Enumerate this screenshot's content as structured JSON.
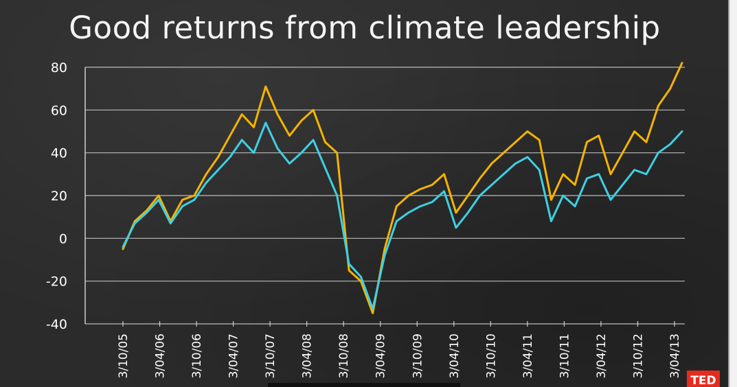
{
  "title": "Good returns from climate leadership",
  "logo_text": "TED",
  "chart_data": {
    "type": "line",
    "title": "Good returns from climate leadership",
    "xlabel": "",
    "ylabel": "",
    "ylim": [
      -40,
      80
    ],
    "grid": "horizontal",
    "yticks": [
      80,
      60,
      40,
      20,
      0,
      -20,
      -40
    ],
    "xticks": [
      "3/10/05",
      "3/04/06",
      "3/10/06",
      "3/04/07",
      "3/10/07",
      "3/04/08",
      "3/10/08",
      "3/04/09",
      "3/10/09",
      "3/04/10",
      "3/10/10",
      "3/04/11",
      "3/10/11",
      "3/04/12",
      "3/10/12",
      "3/04/13"
    ],
    "x": [
      "3/10/05",
      "3/12/05",
      "3/02/06",
      "3/04/06",
      "3/06/06",
      "3/08/06",
      "3/10/06",
      "3/12/06",
      "3/02/07",
      "3/04/07",
      "3/06/07",
      "3/08/07",
      "3/10/07",
      "3/12/07",
      "3/02/08",
      "3/04/08",
      "3/06/08",
      "3/08/08",
      "3/10/08",
      "3/12/08",
      "3/02/09",
      "3/04/09",
      "3/06/09",
      "3/08/09",
      "3/10/09",
      "3/12/09",
      "3/02/10",
      "3/04/10",
      "3/06/10",
      "3/08/10",
      "3/10/10",
      "3/12/10",
      "3/02/11",
      "3/04/11",
      "3/06/11",
      "3/08/11",
      "3/10/11",
      "3/12/11",
      "3/02/12",
      "3/04/12",
      "3/06/12",
      "3/08/12",
      "3/10/12",
      "3/12/12",
      "3/02/13",
      "3/04/13",
      "3/06/13",
      "3/08/13"
    ],
    "series": [
      {
        "color": "#f5b400",
        "values": [
          -5,
          8,
          13,
          20,
          8,
          18,
          20,
          30,
          38,
          48,
          58,
          52,
          71,
          58,
          48,
          55,
          60,
          45,
          40,
          -15,
          -20,
          -35,
          -5,
          15,
          20,
          23,
          25,
          30,
          12,
          20,
          28,
          35,
          40,
          45,
          50,
          46,
          18,
          30,
          25,
          45,
          48,
          30,
          40,
          50,
          45,
          62,
          70,
          82
        ]
      },
      {
        "color": "#3fd0e3",
        "values": [
          -4,
          7,
          12,
          18,
          7,
          15,
          18,
          26,
          32,
          38,
          46,
          40,
          54,
          42,
          35,
          40,
          46,
          33,
          20,
          -12,
          -18,
          -33,
          -8,
          8,
          12,
          15,
          17,
          22,
          5,
          12,
          20,
          25,
          30,
          35,
          38,
          32,
          8,
          20,
          15,
          28,
          30,
          18,
          25,
          32,
          30,
          40,
          44,
          50
        ]
      }
    ]
  }
}
